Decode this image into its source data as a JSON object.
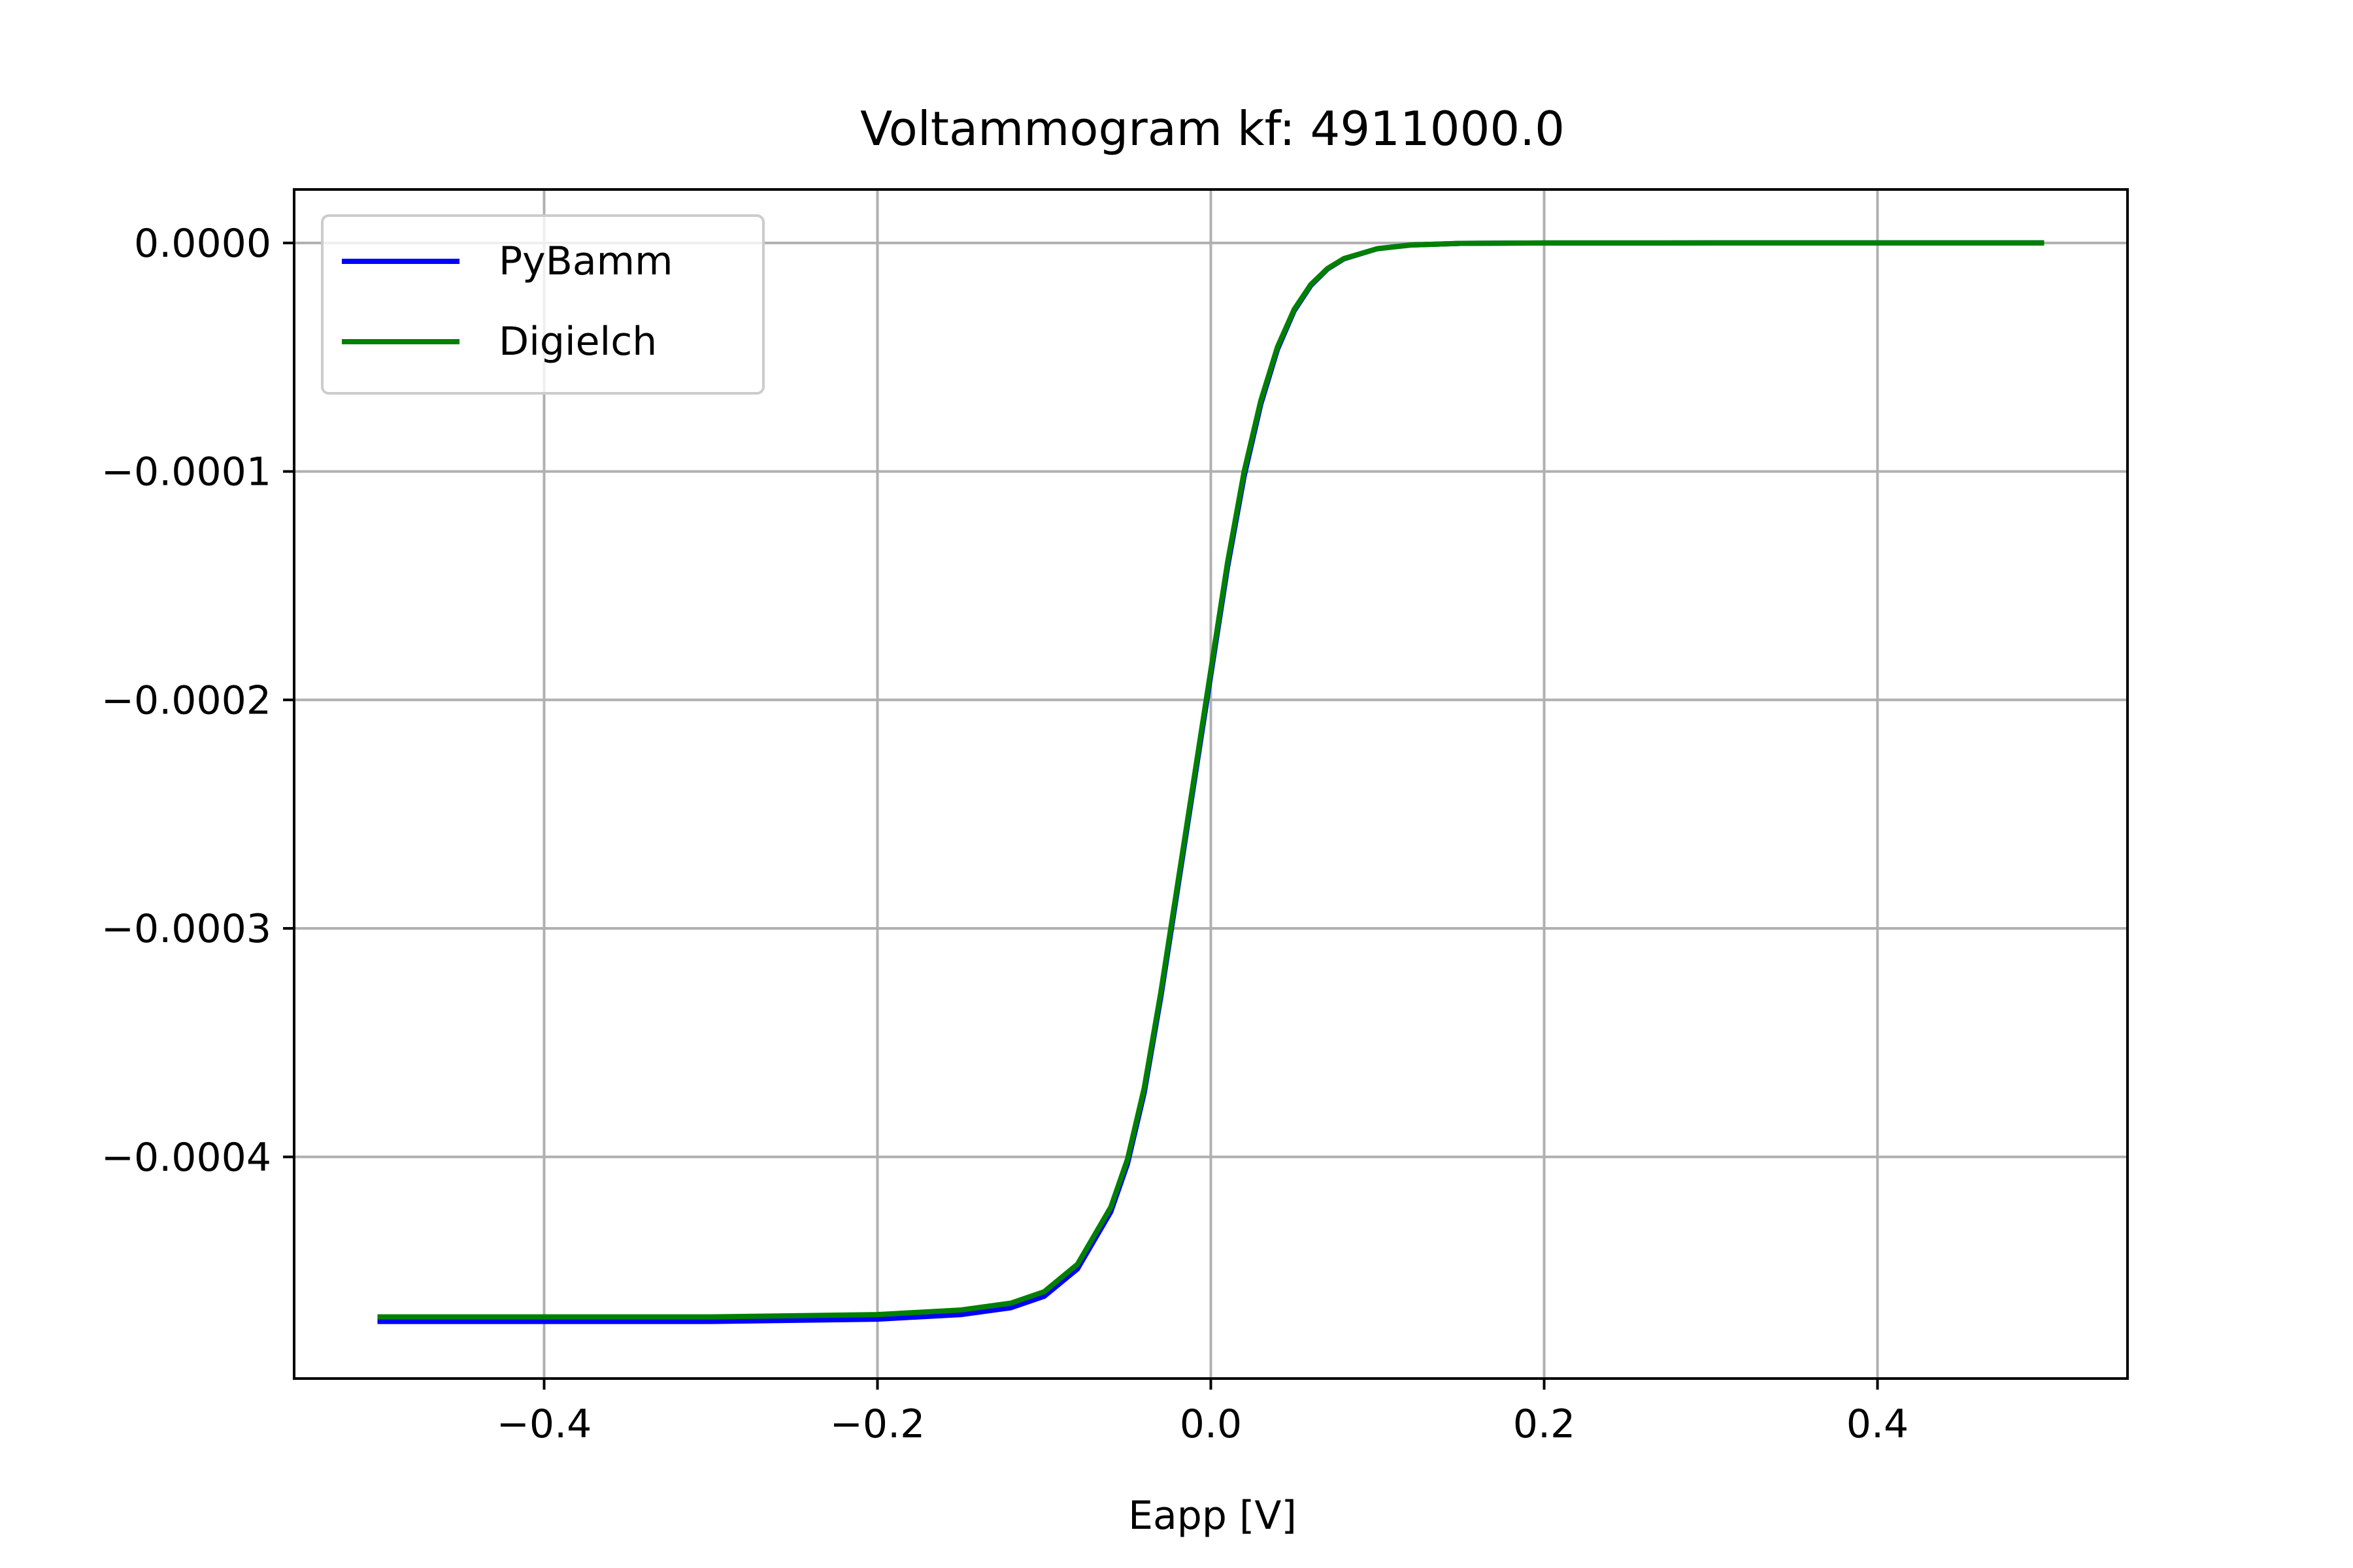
{
  "chart_data": {
    "type": "line",
    "title": "Voltammogram kf: 4911000.0",
    "xlabel": "Eapp [V]",
    "ylabel": "",
    "xlim": [
      -0.55,
      0.55
    ],
    "ylim": [
      -0.000497,
      2.34e-05
    ],
    "x_ticks": [
      -0.4,
      -0.2,
      0.0,
      0.2,
      0.4
    ],
    "x_tick_labels": [
      "−0.4",
      "−0.2",
      "0.0",
      "0.2",
      "0.4"
    ],
    "y_ticks": [
      0.0,
      -0.0001,
      -0.0002,
      -0.0003,
      -0.0004
    ],
    "y_tick_labels": [
      "0.0000",
      "−0.0001",
      "−0.0002",
      "−0.0003",
      "−0.0004"
    ],
    "grid": true,
    "legend_position": "upper-left",
    "series": [
      {
        "name": "PyBamm",
        "color": "#0000ff",
        "x": [
          -0.5,
          -0.4,
          -0.3,
          -0.2,
          -0.15,
          -0.12,
          -0.1,
          -0.08,
          -0.06,
          -0.05,
          -0.04,
          -0.03,
          -0.02,
          -0.01,
          0.0,
          0.01,
          0.02,
          0.03,
          0.04,
          0.05,
          0.06,
          0.07,
          0.08,
          0.1,
          0.12,
          0.15,
          0.2,
          0.3,
          0.4,
          0.5
        ],
        "y": [
          -0.000472,
          -0.000472,
          -0.000472,
          -0.000471,
          -0.000469,
          -0.000466,
          -0.000461,
          -0.000449,
          -0.000424,
          -0.000403,
          -0.000372,
          -0.00033,
          -0.000283,
          -0.000236,
          -0.000189,
          -0.000142,
          -0.000102,
          -7.05e-05,
          -4.65e-05,
          -2.97e-05,
          -1.86e-05,
          -1.14e-05,
          -6.9e-06,
          -2.5e-06,
          -9e-07,
          -2e-07,
          -3e-08,
          0.0,
          0.0,
          0.0
        ]
      },
      {
        "name": "Digielch",
        "color": "#008000",
        "x": [
          -0.5,
          -0.4,
          -0.3,
          -0.2,
          -0.15,
          -0.12,
          -0.1,
          -0.08,
          -0.06,
          -0.05,
          -0.04,
          -0.03,
          -0.02,
          -0.01,
          0.0,
          0.01,
          0.02,
          0.03,
          0.04,
          0.05,
          0.06,
          0.07,
          0.08,
          0.1,
          0.12,
          0.15,
          0.2,
          0.3,
          0.4,
          0.5
        ],
        "y": [
          -0.00047,
          -0.00047,
          -0.00047,
          -0.000469,
          -0.000467,
          -0.000464,
          -0.000459,
          -0.000447,
          -0.000422,
          -0.000401,
          -0.00037,
          -0.000328,
          -0.000281,
          -0.000234,
          -0.000187,
          -0.00014,
          -0.0001,
          -6.9e-05,
          -4.55e-05,
          -2.91e-05,
          -1.82e-05,
          -1.12e-05,
          -6.8e-06,
          -2.5e-06,
          -9e-07,
          -2e-07,
          -3e-08,
          0.0,
          0.0,
          0.0
        ]
      }
    ]
  }
}
